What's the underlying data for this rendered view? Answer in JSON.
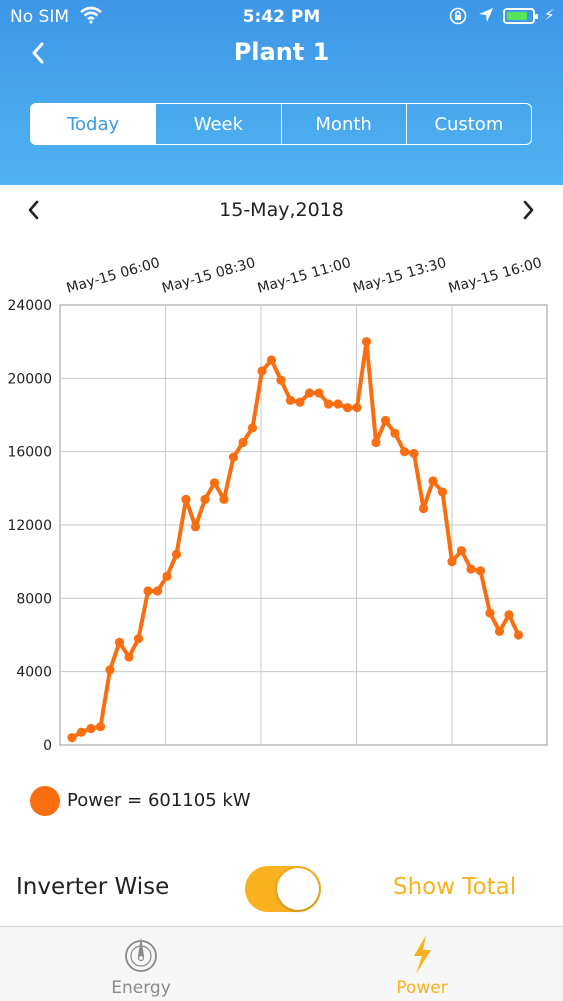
{
  "status_bar": {
    "carrier": "No SIM",
    "time": "5:42 PM",
    "battery_color": "#5be35b"
  },
  "header": {
    "title": "Plant 1"
  },
  "period_tabs": {
    "items": [
      "Today",
      "Week",
      "Month",
      "Custom"
    ],
    "selected": "Today"
  },
  "date_nav": {
    "date": "15-May,2018"
  },
  "legend": {
    "label": "Power = 601105 kW",
    "color": "#f86e10"
  },
  "controls": {
    "inverter_label": "Inverter Wise",
    "toggle_on": true,
    "show_total_label": "Show Total",
    "accent": "#f8b21f"
  },
  "tab_bar": {
    "items": [
      {
        "label": "Energy",
        "icon": "compass-icon",
        "selected": false
      },
      {
        "label": "Power",
        "icon": "lightning-bolt-icon",
        "selected": true
      }
    ]
  },
  "chart_data": {
    "type": "line",
    "title": "",
    "x_tick_labels": [
      "May-15 06:00",
      "May-15 08:30",
      "May-15 11:00",
      "May-15 13:30",
      "May-15 16:00"
    ],
    "y_ticks": [
      0,
      4000,
      8000,
      12000,
      16000,
      20000,
      24000
    ],
    "ylim": [
      0,
      24000
    ],
    "x_start": "May-15 06:00",
    "x_interval_minutes": 15,
    "grid": true,
    "series": [
      {
        "name": "Power",
        "color": "#f86e10",
        "values": [
          400,
          700,
          900,
          1000,
          4100,
          5600,
          4800,
          5800,
          8400,
          8400,
          9200,
          10400,
          13400,
          11900,
          13400,
          14300,
          13400,
          15700,
          16500,
          17300,
          20400,
          21000,
          19900,
          18800,
          18700,
          19200,
          19200,
          18600,
          18600,
          18400,
          18400,
          22000,
          16500,
          17700,
          17000,
          16000,
          15900,
          12900,
          14400,
          13800,
          10000,
          10600,
          9600,
          9500,
          7200,
          6200,
          7100,
          6000
        ]
      }
    ]
  }
}
